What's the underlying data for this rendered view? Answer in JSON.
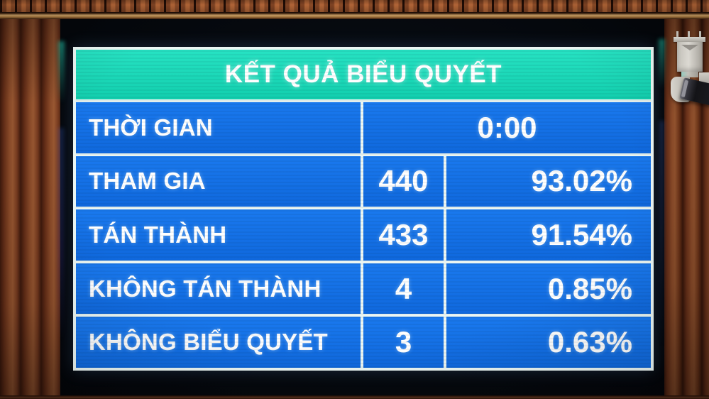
{
  "board": {
    "title": "KẾT QUẢ BIỂU QUYẾT",
    "rows": [
      {
        "label": "THỜI GIAN",
        "value": "0:00",
        "percent": ""
      },
      {
        "label": "THAM GIA",
        "value": "440",
        "percent": "93.02%"
      },
      {
        "label": "TÁN THÀNH",
        "value": "433",
        "percent": "91.54%"
      },
      {
        "label": "KHÔNG TÁN THÀNH",
        "value": "4",
        "percent": "0.85%"
      },
      {
        "label": "KHÔNG BIỂU QUYẾT",
        "value": "3",
        "percent": "0.63%"
      }
    ],
    "colors": {
      "header_bg": "#17dabb",
      "row_bg": "#1270e8",
      "grid_border": "#ebf6f3",
      "text": "#ffffff",
      "screen_bg": "#06090f",
      "wood": "#8f4d2a"
    }
  }
}
